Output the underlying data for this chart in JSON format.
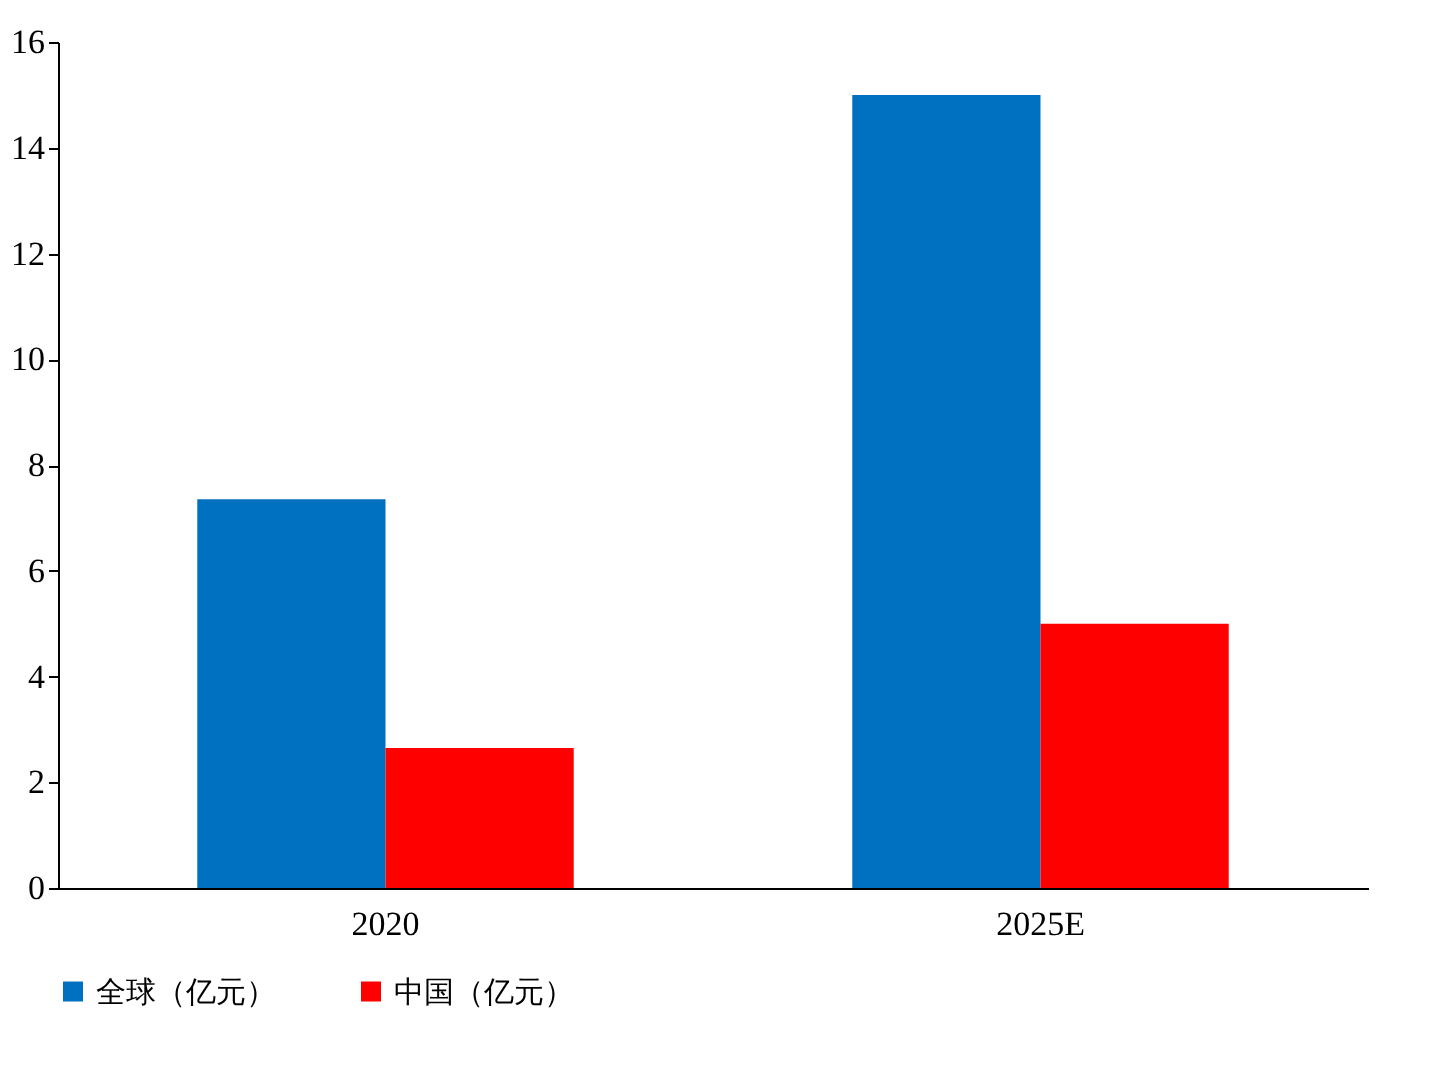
{
  "chart_data": {
    "type": "bar",
    "categories": [
      "2020",
      "2025E"
    ],
    "series": [
      {
        "name": "全球（亿元）",
        "color": "#0070c0",
        "values": [
          7.35,
          15
        ]
      },
      {
        "name": "中国（亿元）",
        "color": "#ff0000",
        "values": [
          2.65,
          5
        ]
      }
    ],
    "ylim": [
      0,
      16
    ],
    "yticks": [
      0,
      2,
      4,
      6,
      8,
      10,
      12,
      14,
      16
    ],
    "grid": false,
    "legend": "bottom"
  }
}
